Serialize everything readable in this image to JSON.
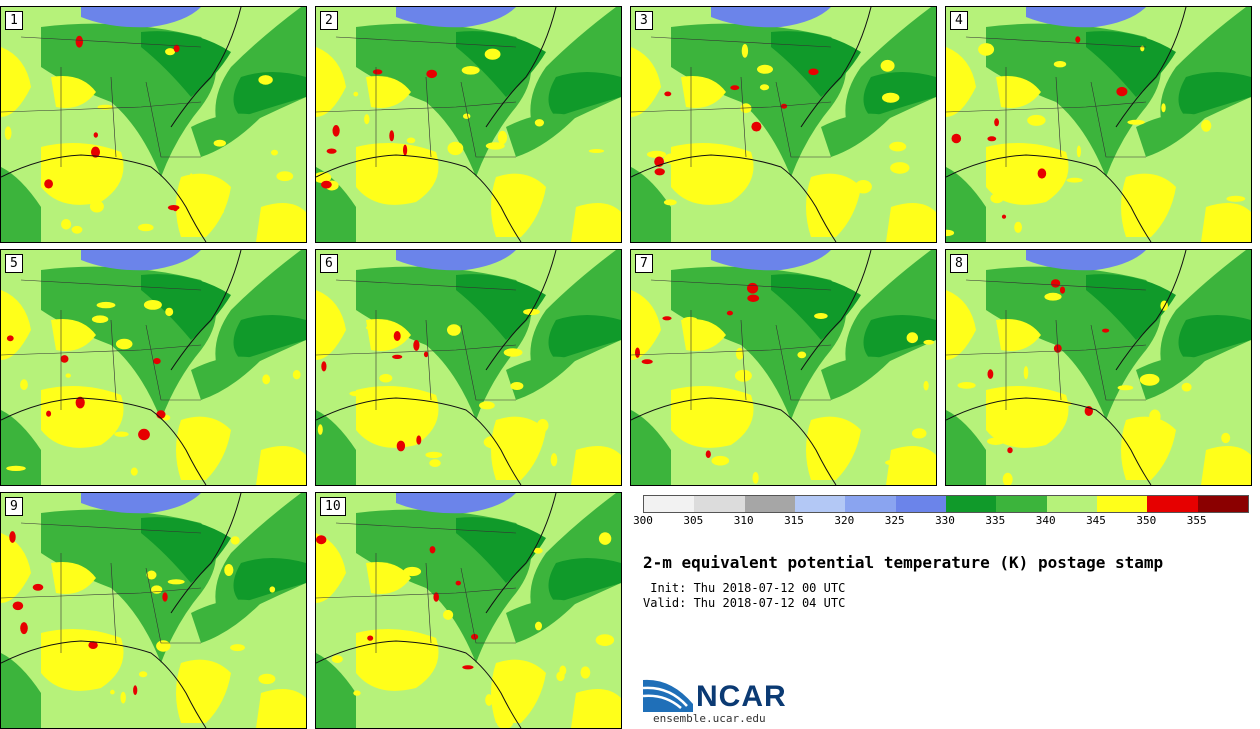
{
  "panels": [
    {
      "label": "1"
    },
    {
      "label": "2"
    },
    {
      "label": "3"
    },
    {
      "label": "4"
    },
    {
      "label": "5"
    },
    {
      "label": "6"
    },
    {
      "label": "7"
    },
    {
      "label": "8"
    },
    {
      "label": "9"
    },
    {
      "label": "10"
    }
  ],
  "legend": {
    "colors": [
      "#f2f2f2",
      "#dcdcdc",
      "#a6a6a6",
      "#b3c8f5",
      "#8aa4f0",
      "#6b84ea",
      "#109a2a",
      "#3cb43c",
      "#b6f27a",
      "#ffff1a",
      "#e60000",
      "#8b0000"
    ],
    "ticks": [
      "300",
      "305",
      "310",
      "315",
      "320",
      "325",
      "330",
      "335",
      "340",
      "345",
      "350",
      "355"
    ]
  },
  "title": "2-m equivalent potential temperature (K) postage stamp",
  "init": " Init: Thu 2018-07-12 00 UTC",
  "valid": "Valid: Thu 2018-07-12 04 UTC",
  "logo": {
    "name": "NCAR",
    "url": "ensemble.ucar.edu"
  },
  "colors": {
    "lake": "#6b84ea",
    "green_dark": "#109a2a",
    "green": "#3cb43c",
    "green_light": "#b6f27a",
    "yellow": "#ffff1a",
    "red": "#e60000"
  }
}
